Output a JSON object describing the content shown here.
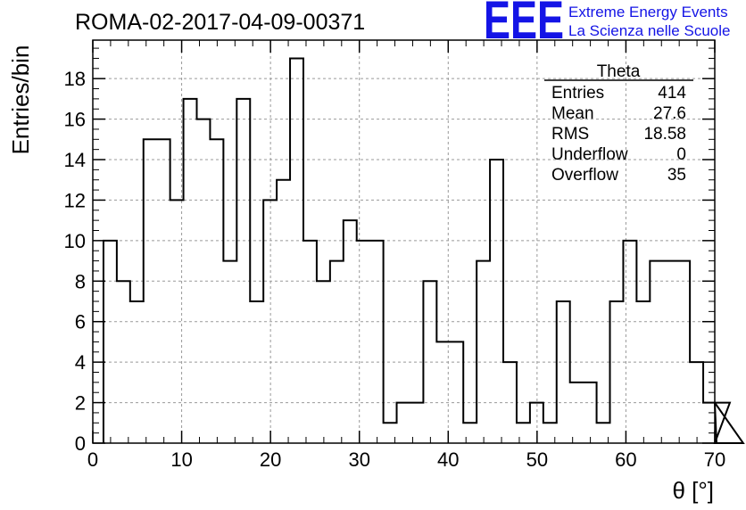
{
  "chart_data": {
    "type": "histogram",
    "title": "ROMA-02-2017-04-09-00371",
    "xlabel": "θ [°]",
    "ylabel": "Entries/bin",
    "xlim": [
      0,
      70
    ],
    "ylim": [
      0,
      19.9
    ],
    "xticks": [
      0,
      10,
      20,
      30,
      40,
      50,
      60,
      70
    ],
    "yticks": [
      0,
      2,
      4,
      6,
      8,
      10,
      12,
      14,
      16,
      18
    ],
    "grid": true,
    "bin_width": 1.5,
    "bin_start": 1.2,
    "values": [
      10,
      8,
      7,
      15,
      15,
      12,
      17,
      16,
      15,
      9,
      17,
      7,
      12,
      13,
      19,
      10,
      8,
      9,
      11,
      10,
      10,
      1,
      2,
      2,
      8,
      5,
      5,
      1,
      9,
      14,
      4,
      1,
      2,
      1,
      7,
      3,
      3,
      1,
      7,
      10,
      7,
      9,
      9,
      9,
      4,
      2,
      0,
      2,
      0
    ]
  },
  "stats_box": {
    "title": "Theta",
    "rows": [
      {
        "label": "Entries",
        "value": "414"
      },
      {
        "label": "Mean",
        "value": "27.6"
      },
      {
        "label": "RMS",
        "value": "18.58"
      },
      {
        "label": "Underflow",
        "value": "0"
      },
      {
        "label": "Overflow",
        "value": "35"
      }
    ]
  },
  "logo": {
    "mark": "EEE",
    "line1": "Extreme Energy Events",
    "line2": "La Scienza nelle Scuole",
    "color": "#1414e6"
  }
}
